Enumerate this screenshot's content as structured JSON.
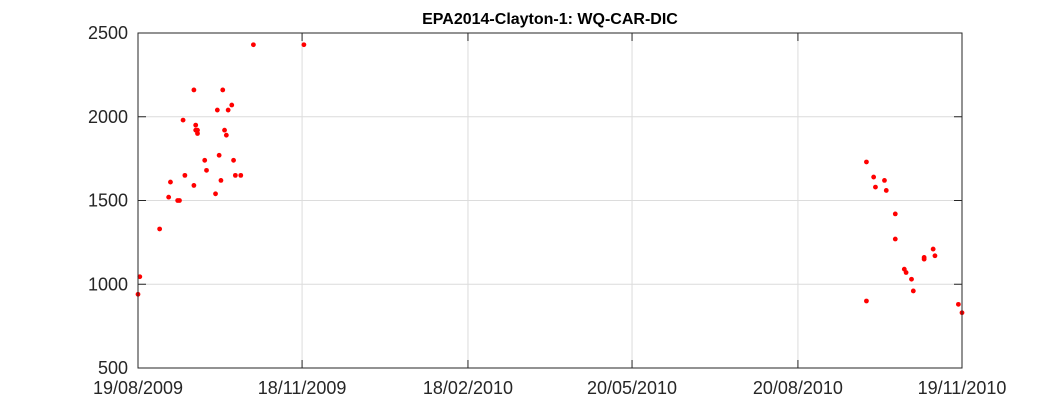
{
  "chart_data": {
    "type": "scatter",
    "title": "EPA2014-Clayton-1: WQ-CAR-DIC",
    "xlabel": "",
    "ylabel": "",
    "xlim": [
      "2009-08-19",
      "2010-11-19"
    ],
    "ylim": [
      500,
      2500
    ],
    "x_ticks": [
      "2009-08-19",
      "2009-11-18",
      "2010-02-18",
      "2010-05-20",
      "2010-08-20",
      "2010-11-19"
    ],
    "x_tick_labels": [
      "19/08/2009",
      "18/11/2009",
      "18/02/2010",
      "20/05/2010",
      "20/08/2010",
      "19/11/2010"
    ],
    "y_ticks": [
      500,
      1000,
      1500,
      2000,
      2500
    ],
    "y_tick_labels": [
      "500",
      "1000",
      "1500",
      "2000",
      "2500"
    ],
    "grid": true,
    "marker_color": "#ff0000",
    "series": [
      {
        "x": [
          "2009-08-19",
          "2009-08-20",
          "2009-08-31",
          "2009-09-05",
          "2009-09-06",
          "2009-09-10",
          "2009-09-11",
          "2009-09-13",
          "2009-09-14",
          "2009-09-19",
          "2009-09-19",
          "2009-09-20",
          "2009-09-20",
          "2009-09-21",
          "2009-09-21",
          "2009-09-25",
          "2009-09-26",
          "2009-10-01",
          "2009-10-02",
          "2009-10-03",
          "2009-10-04",
          "2009-10-05",
          "2009-10-06",
          "2009-10-07",
          "2009-10-08",
          "2009-10-10",
          "2009-10-11",
          "2009-10-12",
          "2009-10-15",
          "2009-10-22",
          "2009-11-19",
          "2010-09-27",
          "2010-09-27",
          "2010-10-01",
          "2010-10-02",
          "2010-10-07",
          "2010-10-08",
          "2010-10-13",
          "2010-10-13",
          "2010-10-18",
          "2010-10-19",
          "2010-10-22",
          "2010-10-23",
          "2010-10-29",
          "2010-10-29",
          "2010-11-03",
          "2010-11-04",
          "2010-11-17",
          "2010-11-19"
        ],
        "y": [
          940,
          1045,
          1330,
          1520,
          1610,
          1500,
          1500,
          1980,
          1650,
          2160,
          1590,
          1920,
          1950,
          1920,
          1900,
          1740,
          1680,
          1540,
          2040,
          1770,
          1620,
          2160,
          1920,
          1890,
          2040,
          2070,
          1740,
          1650,
          1650,
          2430,
          2430,
          1730,
          900,
          1640,
          1580,
          1620,
          1560,
          1420,
          1270,
          1090,
          1070,
          1030,
          960,
          1160,
          1150,
          1210,
          1170,
          880,
          830
        ]
      }
    ]
  }
}
